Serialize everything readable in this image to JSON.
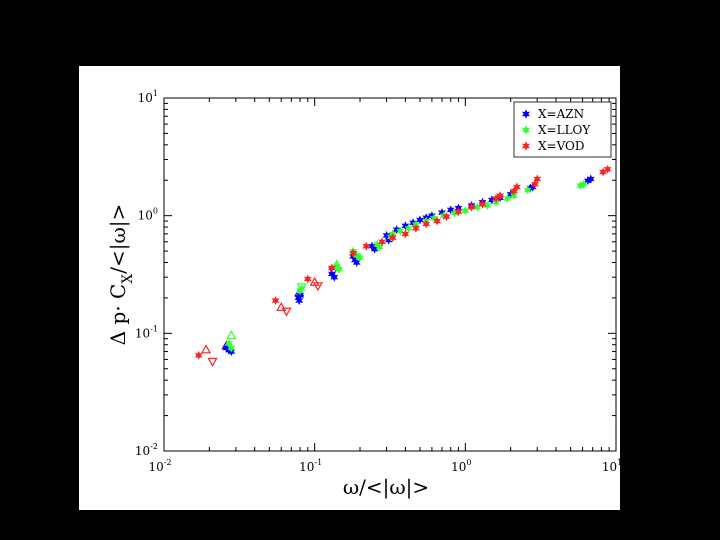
{
  "chart_data": {
    "type": "scatter",
    "xscale": "log",
    "yscale": "log",
    "xlim": [
      0.01,
      10
    ],
    "ylim": [
      0.01,
      10
    ],
    "xticks": [
      {
        "base": "10",
        "exp": "-2"
      },
      {
        "base": "10",
        "exp": "-1"
      },
      {
        "base": "10",
        "exp": "0"
      },
      {
        "base": "10",
        "exp": "1"
      }
    ],
    "yticks": [
      {
        "base": "10",
        "exp": "-2"
      },
      {
        "base": "10",
        "exp": "-1"
      },
      {
        "base": "10",
        "exp": "0"
      },
      {
        "base": "10",
        "exp": "1"
      }
    ],
    "xlabel": "ω/<|ω|>",
    "ylabel_main": "Δ p· C",
    "ylabel_sub": "X",
    "ylabel_tail": "/<|ω|>",
    "grid": false,
    "legend_position": "top-right",
    "series": [
      {
        "name": "X=AZN",
        "color": "#0000ff",
        "points": [
          [
            0.026,
            0.075
          ],
          [
            0.027,
            0.072
          ],
          [
            0.028,
            0.07
          ],
          [
            0.078,
            0.2
          ],
          [
            0.08,
            0.21
          ],
          [
            0.079,
            0.19
          ],
          [
            0.13,
            0.32
          ],
          [
            0.135,
            0.3
          ],
          [
            0.18,
            0.45
          ],
          [
            0.185,
            0.42
          ],
          [
            0.19,
            0.4
          ],
          [
            0.24,
            0.55
          ],
          [
            0.25,
            0.52
          ],
          [
            0.3,
            0.68
          ],
          [
            0.31,
            0.62
          ],
          [
            0.35,
            0.76
          ],
          [
            0.4,
            0.82
          ],
          [
            0.45,
            0.87
          ],
          [
            0.5,
            0.92
          ],
          [
            0.55,
            0.96
          ],
          [
            0.6,
            1.0
          ],
          [
            0.7,
            1.06
          ],
          [
            0.8,
            1.12
          ],
          [
            0.9,
            1.16
          ],
          [
            1.1,
            1.22
          ],
          [
            1.3,
            1.3
          ],
          [
            1.5,
            1.36
          ],
          [
            1.7,
            1.42
          ],
          [
            2.0,
            1.52
          ],
          [
            2.7,
            1.72
          ],
          [
            2.8,
            1.75
          ],
          [
            6.5,
            1.98
          ],
          [
            6.8,
            2.05
          ]
        ],
        "open_points": [
          [
            0.079,
            0.22
          ],
          [
            0.133,
            0.34
          ],
          [
            0.026,
            0.078
          ]
        ]
      },
      {
        "name": "X=LLOY",
        "color": "#33ff33",
        "points": [
          [
            0.027,
            0.082
          ],
          [
            0.028,
            0.075
          ],
          [
            0.08,
            0.23
          ],
          [
            0.082,
            0.24
          ],
          [
            0.14,
            0.37
          ],
          [
            0.145,
            0.35
          ],
          [
            0.18,
            0.5
          ],
          [
            0.19,
            0.46
          ],
          [
            0.2,
            0.44
          ],
          [
            0.26,
            0.57
          ],
          [
            0.27,
            0.54
          ],
          [
            0.32,
            0.66
          ],
          [
            0.33,
            0.7
          ],
          [
            0.37,
            0.74
          ],
          [
            0.42,
            0.78
          ],
          [
            0.47,
            0.84
          ],
          [
            0.55,
            0.9
          ],
          [
            0.62,
            0.95
          ],
          [
            0.72,
            1.0
          ],
          [
            0.85,
            1.05
          ],
          [
            1.0,
            1.1
          ],
          [
            1.2,
            1.18
          ],
          [
            1.4,
            1.22
          ],
          [
            1.6,
            1.3
          ],
          [
            1.9,
            1.4
          ],
          [
            2.1,
            1.48
          ],
          [
            2.6,
            1.65
          ],
          [
            5.8,
            1.8
          ],
          [
            6.1,
            1.85
          ]
        ],
        "open_points": [
          [
            0.028,
            0.095
          ],
          [
            0.082,
            0.25
          ],
          [
            0.14,
            0.38
          ]
        ]
      },
      {
        "name": "X=VOD",
        "color": "#ff2222",
        "points": [
          [
            0.017,
            0.065
          ],
          [
            0.055,
            0.19
          ],
          [
            0.09,
            0.29
          ],
          [
            0.13,
            0.36
          ],
          [
            0.18,
            0.48
          ],
          [
            0.22,
            0.55
          ],
          [
            0.28,
            0.6
          ],
          [
            0.33,
            0.65
          ],
          [
            0.4,
            0.7
          ],
          [
            0.47,
            0.78
          ],
          [
            0.55,
            0.85
          ],
          [
            0.65,
            0.9
          ],
          [
            0.75,
            0.98
          ],
          [
            0.9,
            1.08
          ],
          [
            1.1,
            1.18
          ],
          [
            1.3,
            1.25
          ],
          [
            1.6,
            1.4
          ],
          [
            1.7,
            1.48
          ],
          [
            2.1,
            1.62
          ],
          [
            2.2,
            1.75
          ],
          [
            2.9,
            1.85
          ],
          [
            3.0,
            2.05
          ],
          [
            8.2,
            2.35
          ],
          [
            8.8,
            2.48
          ]
        ],
        "open_points": [
          [
            0.019,
            0.072
          ],
          [
            0.021,
            0.058
          ],
          [
            0.06,
            0.165
          ],
          [
            0.065,
            0.155
          ],
          [
            0.1,
            0.27
          ],
          [
            0.105,
            0.255
          ]
        ]
      }
    ]
  }
}
